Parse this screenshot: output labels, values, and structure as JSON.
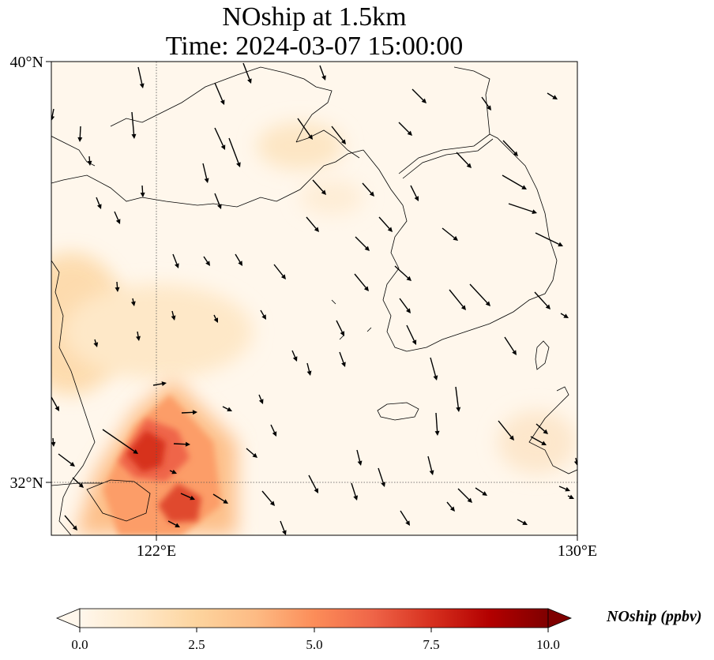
{
  "title_line1": "NOship at 1.5km",
  "title_line2": "Time: 2024-03-07 15:00:00",
  "map": {
    "lat_ticks": [
      {
        "value": 40,
        "label": "40°N"
      },
      {
        "value": 32,
        "label": "32°N"
      }
    ],
    "lon_ticks": [
      {
        "value": 122,
        "label": "122°E"
      },
      {
        "value": 130,
        "label": "130°E"
      }
    ],
    "extent": {
      "lon_min": 120,
      "lon_max": 130,
      "lat_min": 31,
      "lat_max": 40
    },
    "gridlines": "dotted at 122°E and 32°N",
    "colormap": "OrRd"
  },
  "colorbar": {
    "label": "NOship (ppbv)",
    "ticks": [
      "0.0",
      "2.5",
      "5.0",
      "7.5",
      "10.0"
    ],
    "range": [
      0,
      10
    ],
    "extend": "both",
    "colors": [
      "#fff7ec",
      "#fee8c8",
      "#fdd49e",
      "#fdbb84",
      "#fc8d59",
      "#ef6548",
      "#d7301f",
      "#b30000",
      "#7f0000"
    ]
  }
}
